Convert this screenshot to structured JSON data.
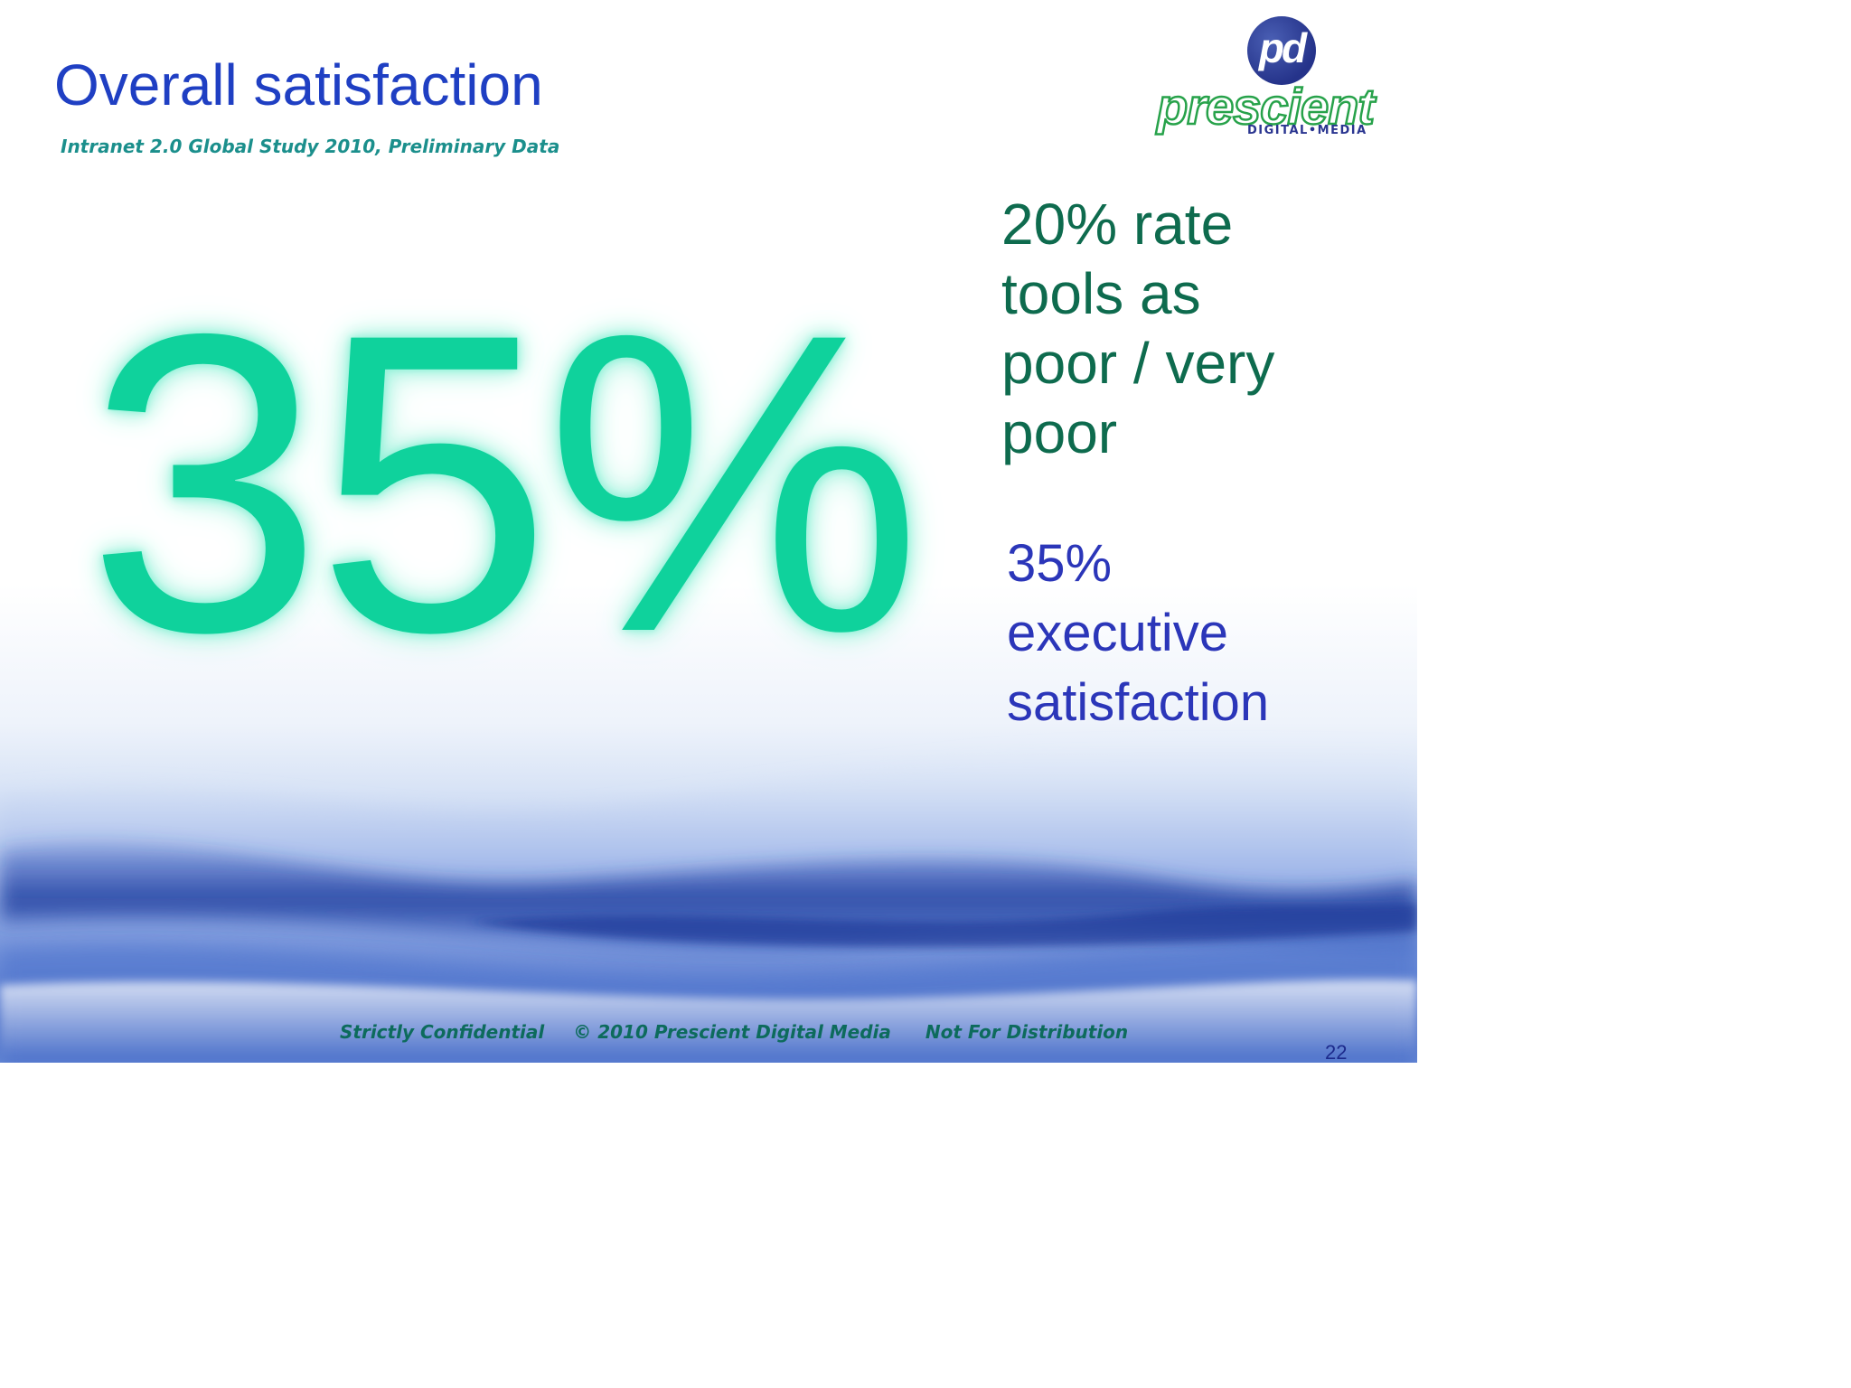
{
  "slide": {
    "title": "Overall satisfaction",
    "subtitle": "Intranet 2.0 Global Study 2010, Preliminary Data",
    "big_stat": "35%",
    "stat_green_lines": [
      "20% rate",
      "tools as",
      "poor / very",
      "poor"
    ],
    "stat_blue_lines": [
      "35%",
      "executive",
      "satisfaction"
    ],
    "page_number": "22"
  },
  "logo": {
    "monogram": "pd",
    "wordmark": "prescient",
    "tagline": "DIGITAL•MEDIA"
  },
  "footer": {
    "confidential": "Strictly Confidential",
    "copyright": "© 2010 Prescient Digital Media",
    "distribution": "Not For Distribution"
  },
  "colors": {
    "title": "#1f3fc3",
    "subtitle": "#1b8f8c",
    "big_stat": "#0fd29c",
    "stat_green": "#0e6b4e",
    "stat_blue": "#2b36b9",
    "footer": "#0d6b5c",
    "logo_green": "#27a24a",
    "logo_navy": "#25338a"
  }
}
